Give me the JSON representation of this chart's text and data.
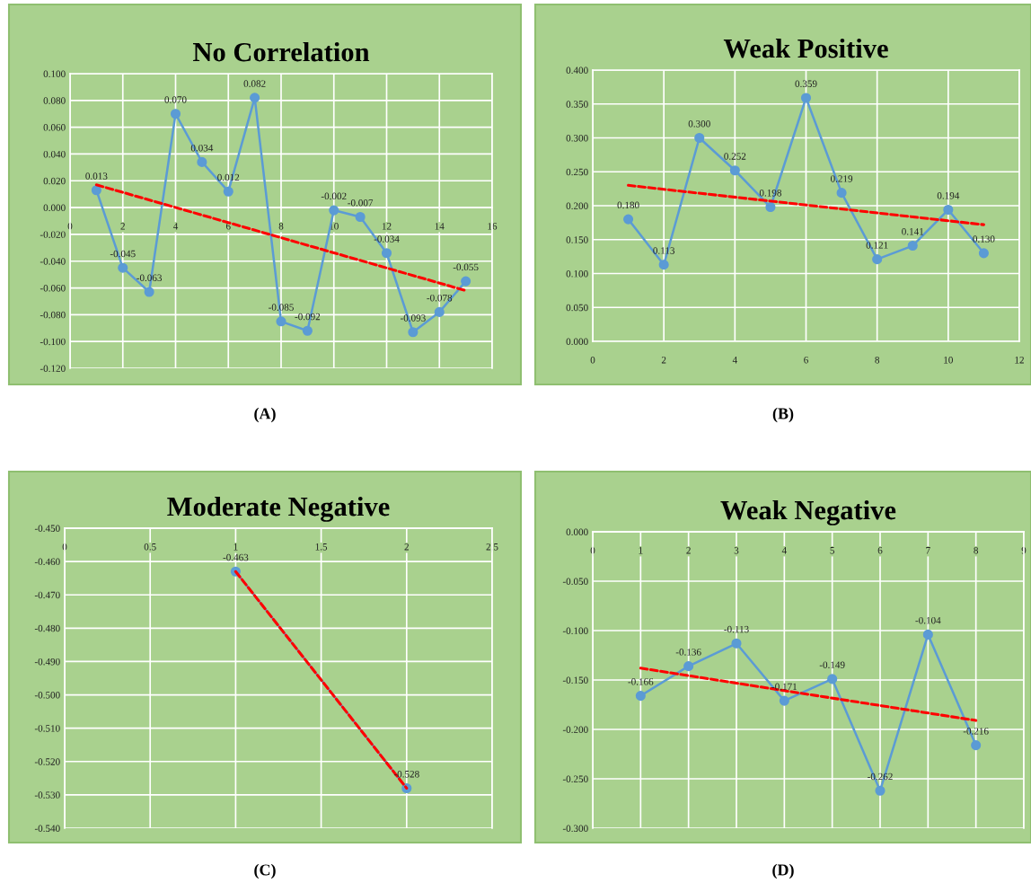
{
  "chart_data": [
    {
      "type": "line",
      "title": "No Correlation",
      "annotations": [
        "(A)"
      ],
      "marker": "circle",
      "grid": true,
      "xlim": [
        0,
        16
      ],
      "xticks": [
        0,
        2,
        4,
        6,
        8,
        10,
        12,
        14,
        16
      ],
      "ylim": [
        -0.12,
        0.1
      ],
      "yticks": [
        {
          "value": -0.12,
          "label": "-0.120"
        },
        {
          "value": -0.1,
          "label": "-0.100"
        },
        {
          "value": -0.08,
          "label": "-0.080"
        },
        {
          "value": -0.06,
          "label": "-0.060"
        },
        {
          "value": -0.04,
          "label": "-0.040"
        },
        {
          "value": -0.02,
          "label": "-0.020"
        },
        {
          "value": 0,
          "label": "0.000"
        },
        {
          "value": 0.02,
          "label": "0.020"
        },
        {
          "value": 0.04,
          "label": "0.040"
        },
        {
          "value": 0.06,
          "label": "0.060"
        },
        {
          "value": 0.08,
          "label": "0.080"
        },
        {
          "value": 0.1,
          "label": "0.100"
        }
      ],
      "series": [
        {
          "color": "#5b9bd5",
          "x": [
            1,
            2,
            3,
            4,
            5,
            6,
            7,
            8,
            9,
            10,
            11,
            12,
            13,
            14,
            15
          ],
          "values": [
            0.013,
            -0.045,
            -0.063,
            0.07,
            0.034,
            0.012,
            0.082,
            -0.085,
            -0.092,
            -0.002,
            -0.007,
            -0.034,
            -0.093,
            -0.078,
            -0.055
          ],
          "value_labels": [
            "0.013",
            "-0.045",
            "-0.063",
            "0.070",
            "0.034",
            "0.012",
            "0.082",
            "-0.085",
            "-0.092",
            "-0.002",
            "-0.007",
            "-0.034",
            "-0.093",
            "-0.078",
            "-0.055"
          ]
        },
        {
          "color": "#ff0000",
          "line_style": "dashed",
          "marker": "none",
          "x": [
            1,
            15
          ],
          "values": [
            0.017,
            -0.062
          ]
        }
      ]
    },
    {
      "type": "line",
      "title": "Weak Positive",
      "annotations": [
        "(B)"
      ],
      "marker": "circle",
      "grid": true,
      "xlim": [
        0,
        12
      ],
      "xticks": [
        0,
        2,
        4,
        6,
        8,
        10,
        12
      ],
      "ylim": [
        0,
        0.4
      ],
      "yticks": [
        {
          "value": 0,
          "label": "0.000"
        },
        {
          "value": 0.05,
          "label": "0.050"
        },
        {
          "value": 0.1,
          "label": "0.100"
        },
        {
          "value": 0.15,
          "label": "0.150"
        },
        {
          "value": 0.2,
          "label": "0.200"
        },
        {
          "value": 0.25,
          "label": "0.250"
        },
        {
          "value": 0.3,
          "label": "0.300"
        },
        {
          "value": 0.35,
          "label": "0.350"
        },
        {
          "value": 0.4,
          "label": "0.400"
        }
      ],
      "series": [
        {
          "color": "#5b9bd5",
          "x": [
            1,
            2,
            3,
            4,
            5,
            6,
            7,
            8,
            9,
            10,
            11
          ],
          "values": [
            0.18,
            0.113,
            0.3,
            0.252,
            0.198,
            0.359,
            0.219,
            0.121,
            0.141,
            0.194,
            0.13
          ],
          "value_labels": [
            "0.180",
            "0.113",
            "0.300",
            "0.252",
            "0.198",
            "0.359",
            "0.219",
            "0.121",
            "0.141",
            "0.194",
            "0.130"
          ]
        },
        {
          "color": "#ff0000",
          "line_style": "dashed",
          "marker": "none",
          "x": [
            1,
            11
          ],
          "values": [
            0.23,
            0.172
          ]
        }
      ]
    },
    {
      "type": "line",
      "title": "Moderate Negative",
      "annotations": [
        "(C)"
      ],
      "marker": "circle",
      "grid": true,
      "xlim": [
        0,
        2.5
      ],
      "xticks": [
        0,
        0.5,
        1,
        1.5,
        2,
        2.5
      ],
      "ylim": [
        -0.54,
        -0.45
      ],
      "yticks": [
        {
          "value": -0.54,
          "label": "-0.540"
        },
        {
          "value": -0.53,
          "label": "-0.530"
        },
        {
          "value": -0.52,
          "label": "-0.520"
        },
        {
          "value": -0.51,
          "label": "-0.510"
        },
        {
          "value": -0.5,
          "label": "-0.500"
        },
        {
          "value": -0.49,
          "label": "-0.490"
        },
        {
          "value": -0.48,
          "label": "-0.480"
        },
        {
          "value": -0.47,
          "label": "-0.470"
        },
        {
          "value": -0.46,
          "label": "-0.460"
        },
        {
          "value": -0.45,
          "label": "-0.450"
        }
      ],
      "series": [
        {
          "color": "#5b9bd5",
          "x": [
            1,
            2
          ],
          "values": [
            -0.463,
            -0.528
          ],
          "value_labels": [
            "-0.463",
            "-0.528"
          ]
        },
        {
          "color": "#ff0000",
          "line_style": "dashed",
          "marker": "none",
          "x": [
            1,
            2
          ],
          "values": [
            -0.463,
            -0.528
          ]
        }
      ]
    },
    {
      "type": "line",
      "title": "Weak Negative",
      "annotations": [
        "(D)"
      ],
      "marker": "circle",
      "grid": true,
      "xlim": [
        0,
        9
      ],
      "xticks": [
        0,
        1,
        2,
        3,
        4,
        5,
        6,
        7,
        8,
        9
      ],
      "ylim": [
        -0.3,
        0
      ],
      "yticks": [
        {
          "value": -0.3,
          "label": "-0.300"
        },
        {
          "value": -0.25,
          "label": "-0.250"
        },
        {
          "value": -0.2,
          "label": "-0.200"
        },
        {
          "value": -0.15,
          "label": "-0.150"
        },
        {
          "value": -0.1,
          "label": "-0.100"
        },
        {
          "value": -0.05,
          "label": "-0.050"
        },
        {
          "value": 0,
          "label": "0.000"
        }
      ],
      "series": [
        {
          "color": "#5b9bd5",
          "x": [
            1,
            2,
            3,
            4,
            5,
            6,
            7,
            8
          ],
          "values": [
            -0.166,
            -0.136,
            -0.113,
            -0.171,
            -0.149,
            -0.262,
            -0.104,
            -0.216
          ],
          "value_labels": [
            "-0.166",
            "-0.136",
            "-0.113",
            "-0.171",
            "-0.149",
            "-0.262",
            "-0.104",
            "-0.216"
          ]
        },
        {
          "color": "#ff0000",
          "line_style": "dashed",
          "marker": "none",
          "x": [
            1,
            8
          ],
          "values": [
            -0.138,
            -0.191
          ]
        }
      ]
    }
  ]
}
